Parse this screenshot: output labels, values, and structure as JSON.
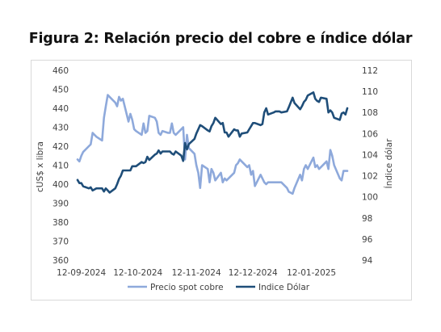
{
  "chart_data": {
    "type": "line",
    "title": "Figura 2: Relación precio del cobre e índice dólar",
    "ylabel": "cUS$ x libra",
    "y2label": "Índice dólar",
    "ylim": [
      360,
      460
    ],
    "y2lim": [
      94,
      112
    ],
    "yticks": [
      "460",
      "450",
      "440",
      "430",
      "420",
      "410",
      "400",
      "390",
      "380",
      "370",
      "360"
    ],
    "y2ticks": [
      "112",
      "110",
      "108",
      "106",
      "104",
      "102",
      "100",
      "98",
      "96",
      "94"
    ],
    "xlim": [
      "2024-09-10",
      "2025-01-31"
    ],
    "xticks": [
      {
        "date": "2024-09-12",
        "label": "12-09-2024"
      },
      {
        "date": "2024-10-12",
        "label": "12-10-2024"
      },
      {
        "date": "2024-11-12",
        "label": "12-11-2024"
      },
      {
        "date": "2024-12-12",
        "label": "12-12-2024"
      },
      {
        "date": "2025-01-12",
        "label": "12-01-2025"
      }
    ],
    "grid": false,
    "legend_position": "bottom",
    "series": [
      {
        "name": "Precio spot cobre",
        "axis": "left",
        "color": "#8EA9DB",
        "points": [
          [
            "2024-09-10",
            413
          ],
          [
            "2024-09-11",
            412
          ],
          [
            "2024-09-12",
            415
          ],
          [
            "2024-09-13",
            417
          ],
          [
            "2024-09-16",
            420
          ],
          [
            "2024-09-17",
            421
          ],
          [
            "2024-09-18",
            427
          ],
          [
            "2024-09-19",
            426
          ],
          [
            "2024-09-20",
            425
          ],
          [
            "2024-09-23",
            423
          ],
          [
            "2024-09-24",
            435
          ],
          [
            "2024-09-25",
            441
          ],
          [
            "2024-09-26",
            447
          ],
          [
            "2024-09-27",
            446
          ],
          [
            "2024-09-30",
            443
          ],
          [
            "2024-10-01",
            441
          ],
          [
            "2024-10-02",
            446
          ],
          [
            "2024-10-03",
            444
          ],
          [
            "2024-10-04",
            445
          ],
          [
            "2024-10-07",
            433
          ],
          [
            "2024-10-08",
            437
          ],
          [
            "2024-10-09",
            434
          ],
          [
            "2024-10-10",
            429
          ],
          [
            "2024-10-11",
            428
          ],
          [
            "2024-10-14",
            426
          ],
          [
            "2024-10-15",
            432
          ],
          [
            "2024-10-16",
            427
          ],
          [
            "2024-10-17",
            428
          ],
          [
            "2024-10-18",
            436
          ],
          [
            "2024-10-21",
            435
          ],
          [
            "2024-10-22",
            433
          ],
          [
            "2024-10-23",
            427
          ],
          [
            "2024-10-24",
            426
          ],
          [
            "2024-10-25",
            428
          ],
          [
            "2024-10-28",
            427
          ],
          [
            "2024-10-29",
            427
          ],
          [
            "2024-10-30",
            432
          ],
          [
            "2024-10-31",
            427
          ],
          [
            "2024-11-01",
            426
          ],
          [
            "2024-11-04",
            429
          ],
          [
            "2024-11-05",
            430
          ],
          [
            "2024-11-06",
            413
          ],
          [
            "2024-11-07",
            426
          ],
          [
            "2024-11-08",
            419
          ],
          [
            "2024-11-11",
            416
          ],
          [
            "2024-11-12",
            410
          ],
          [
            "2024-11-13",
            406
          ],
          [
            "2024-11-14",
            398
          ],
          [
            "2024-11-15",
            410
          ],
          [
            "2024-11-18",
            408
          ],
          [
            "2024-11-19",
            401
          ],
          [
            "2024-11-20",
            408
          ],
          [
            "2024-11-21",
            406
          ],
          [
            "2024-11-22",
            402
          ],
          [
            "2024-11-25",
            406
          ],
          [
            "2024-11-26",
            401
          ],
          [
            "2024-11-27",
            403
          ],
          [
            "2024-11-28",
            402
          ],
          [
            "2024-11-29",
            403
          ],
          [
            "2024-12-02",
            406
          ],
          [
            "2024-12-03",
            410
          ],
          [
            "2024-12-04",
            411
          ],
          [
            "2024-12-05",
            413
          ],
          [
            "2024-12-06",
            412
          ],
          [
            "2024-12-09",
            409
          ],
          [
            "2024-12-10",
            410
          ],
          [
            "2024-12-11",
            405
          ],
          [
            "2024-12-12",
            407
          ],
          [
            "2024-12-13",
            399
          ],
          [
            "2024-12-16",
            405
          ],
          [
            "2024-12-17",
            403
          ],
          [
            "2024-12-18",
            401
          ],
          [
            "2024-12-19",
            400
          ],
          [
            "2024-12-20",
            401
          ],
          [
            "2024-12-23",
            401
          ],
          [
            "2024-12-24",
            401
          ],
          [
            "2024-12-26",
            401
          ],
          [
            "2024-12-27",
            401
          ],
          [
            "2024-12-30",
            398
          ],
          [
            "2024-12-31",
            396
          ],
          [
            "2025-01-02",
            395
          ],
          [
            "2025-01-03",
            398
          ],
          [
            "2025-01-06",
            405
          ],
          [
            "2025-01-07",
            402
          ],
          [
            "2025-01-08",
            408
          ],
          [
            "2025-01-09",
            410
          ],
          [
            "2025-01-10",
            408
          ],
          [
            "2025-01-13",
            414
          ],
          [
            "2025-01-14",
            409
          ],
          [
            "2025-01-15",
            410
          ],
          [
            "2025-01-16",
            408
          ],
          [
            "2025-01-17",
            409
          ],
          [
            "2025-01-20",
            412
          ],
          [
            "2025-01-21",
            408
          ],
          [
            "2025-01-22",
            418
          ],
          [
            "2025-01-23",
            415
          ],
          [
            "2025-01-24",
            410
          ],
          [
            "2025-01-27",
            403
          ],
          [
            "2025-01-28",
            402
          ],
          [
            "2025-01-29",
            407
          ],
          [
            "2025-01-30",
            407
          ],
          [
            "2025-01-31",
            407
          ]
        ]
      },
      {
        "name": "Indice Dólar",
        "axis": "right",
        "color": "#1F4E79",
        "points": [
          [
            "2024-09-10",
            101.6
          ],
          [
            "2024-09-11",
            101.3
          ],
          [
            "2024-09-12",
            101.3
          ],
          [
            "2024-09-13",
            101.0
          ],
          [
            "2024-09-16",
            100.8
          ],
          [
            "2024-09-17",
            100.9
          ],
          [
            "2024-09-18",
            100.6
          ],
          [
            "2024-09-19",
            100.7
          ],
          [
            "2024-09-20",
            100.8
          ],
          [
            "2024-09-23",
            100.8
          ],
          [
            "2024-09-24",
            100.5
          ],
          [
            "2024-09-25",
            100.8
          ],
          [
            "2024-09-26",
            100.6
          ],
          [
            "2024-09-27",
            100.4
          ],
          [
            "2024-09-30",
            100.8
          ],
          [
            "2024-10-01",
            101.2
          ],
          [
            "2024-10-02",
            101.7
          ],
          [
            "2024-10-03",
            102.0
          ],
          [
            "2024-10-04",
            102.5
          ],
          [
            "2024-10-07",
            102.5
          ],
          [
            "2024-10-08",
            102.5
          ],
          [
            "2024-10-09",
            102.9
          ],
          [
            "2024-10-10",
            102.9
          ],
          [
            "2024-10-11",
            102.9
          ],
          [
            "2024-10-14",
            103.3
          ],
          [
            "2024-10-15",
            103.2
          ],
          [
            "2024-10-16",
            103.3
          ],
          [
            "2024-10-17",
            103.8
          ],
          [
            "2024-10-18",
            103.5
          ],
          [
            "2024-10-21",
            104.0
          ],
          [
            "2024-10-22",
            104.1
          ],
          [
            "2024-10-23",
            104.4
          ],
          [
            "2024-10-24",
            104.1
          ],
          [
            "2024-10-25",
            104.3
          ],
          [
            "2024-10-28",
            104.3
          ],
          [
            "2024-10-29",
            104.3
          ],
          [
            "2024-10-30",
            104.1
          ],
          [
            "2024-10-31",
            104.0
          ],
          [
            "2024-11-01",
            104.3
          ],
          [
            "2024-11-04",
            103.9
          ],
          [
            "2024-11-05",
            103.4
          ],
          [
            "2024-11-06",
            105.1
          ],
          [
            "2024-11-07",
            104.5
          ],
          [
            "2024-11-08",
            105.0
          ],
          [
            "2024-11-11",
            105.5
          ],
          [
            "2024-11-12",
            106.0
          ],
          [
            "2024-11-13",
            106.4
          ],
          [
            "2024-11-14",
            106.8
          ],
          [
            "2024-11-15",
            106.7
          ],
          [
            "2024-11-18",
            106.3
          ],
          [
            "2024-11-19",
            106.2
          ],
          [
            "2024-11-20",
            106.7
          ],
          [
            "2024-11-21",
            107.0
          ],
          [
            "2024-11-22",
            107.5
          ],
          [
            "2024-11-25",
            106.9
          ],
          [
            "2024-11-26",
            107.0
          ],
          [
            "2024-11-27",
            106.1
          ],
          [
            "2024-11-28",
            106.1
          ],
          [
            "2024-11-29",
            105.7
          ],
          [
            "2024-12-02",
            106.4
          ],
          [
            "2024-12-03",
            106.3
          ],
          [
            "2024-12-04",
            106.3
          ],
          [
            "2024-12-05",
            105.7
          ],
          [
            "2024-12-06",
            106.0
          ],
          [
            "2024-12-09",
            106.1
          ],
          [
            "2024-12-10",
            106.4
          ],
          [
            "2024-12-11",
            106.7
          ],
          [
            "2024-12-12",
            107.0
          ],
          [
            "2024-12-13",
            107.0
          ],
          [
            "2024-12-16",
            106.8
          ],
          [
            "2024-12-17",
            106.9
          ],
          [
            "2024-12-18",
            108.0
          ],
          [
            "2024-12-19",
            108.4
          ],
          [
            "2024-12-20",
            107.8
          ],
          [
            "2024-12-23",
            108.0
          ],
          [
            "2024-12-24",
            108.1
          ],
          [
            "2024-12-26",
            108.1
          ],
          [
            "2024-12-27",
            108.0
          ],
          [
            "2024-12-30",
            108.1
          ],
          [
            "2024-12-31",
            108.5
          ],
          [
            "2025-01-02",
            109.4
          ],
          [
            "2025-01-03",
            108.9
          ],
          [
            "2025-01-06",
            108.3
          ],
          [
            "2025-01-07",
            108.6
          ],
          [
            "2025-01-08",
            109.0
          ],
          [
            "2025-01-09",
            109.2
          ],
          [
            "2025-01-10",
            109.6
          ],
          [
            "2025-01-13",
            109.9
          ],
          [
            "2025-01-14",
            109.3
          ],
          [
            "2025-01-15",
            109.1
          ],
          [
            "2025-01-16",
            109.0
          ],
          [
            "2025-01-17",
            109.4
          ],
          [
            "2025-01-20",
            109.3
          ],
          [
            "2025-01-21",
            108.0
          ],
          [
            "2025-01-22",
            108.2
          ],
          [
            "2025-01-23",
            108.0
          ],
          [
            "2025-01-24",
            107.5
          ],
          [
            "2025-01-27",
            107.3
          ],
          [
            "2025-01-28",
            107.9
          ],
          [
            "2025-01-29",
            108.0
          ],
          [
            "2025-01-30",
            107.8
          ],
          [
            "2025-01-31",
            108.4
          ]
        ]
      }
    ]
  }
}
